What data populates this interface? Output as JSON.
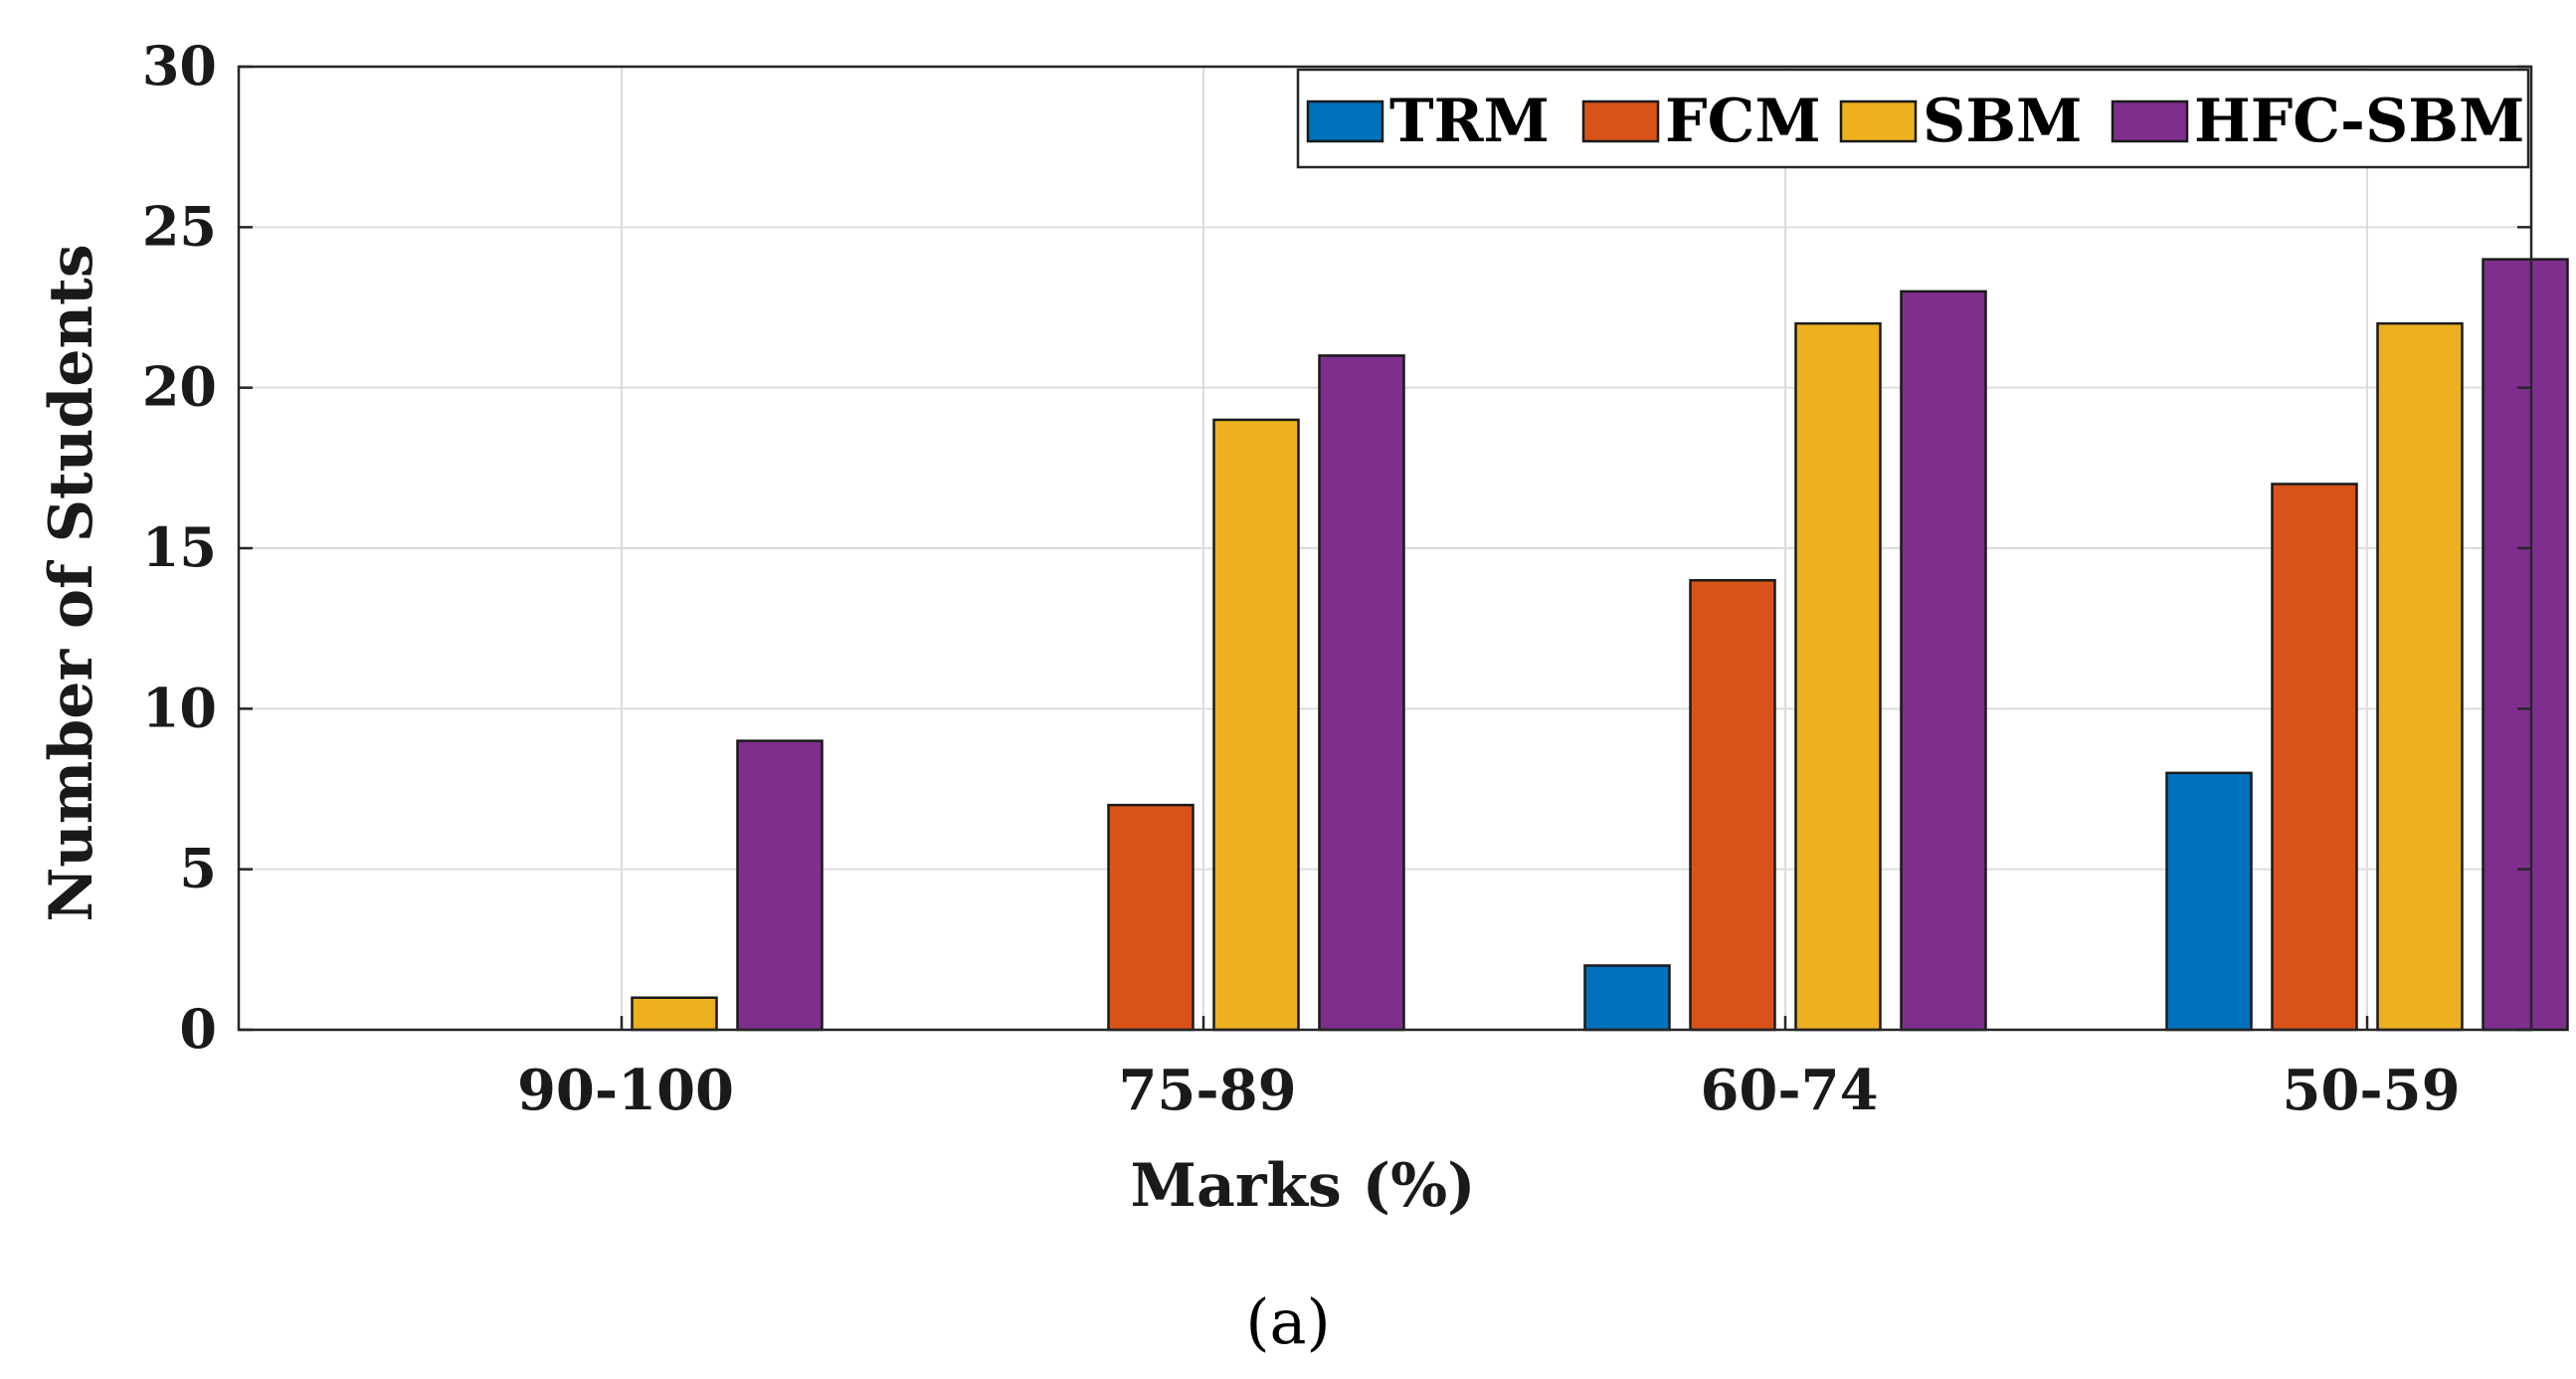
{
  "chart_data": {
    "type": "bar",
    "title": "",
    "xlabel": "Marks (%)",
    "ylabel": "Number of Students",
    "caption": "(a)",
    "categories": [
      "90-100",
      "75-89",
      "60-74",
      "50-59"
    ],
    "ylim": [
      0,
      30
    ],
    "yticks": [
      0,
      5,
      10,
      15,
      20,
      25,
      30
    ],
    "grid": true,
    "legend_position": "top-right",
    "series": [
      {
        "name": "TRM",
        "color": "#0072BD",
        "values": [
          0,
          0,
          2,
          8
        ]
      },
      {
        "name": "FCM",
        "color": "#D95319",
        "values": [
          0,
          7,
          14,
          17
        ]
      },
      {
        "name": "SBM",
        "color": "#EDB120",
        "values": [
          1,
          19,
          22,
          22
        ]
      },
      {
        "name": "HFC-SBM",
        "color": "#7E2F8E",
        "values": [
          9,
          21,
          23,
          24
        ]
      }
    ]
  }
}
